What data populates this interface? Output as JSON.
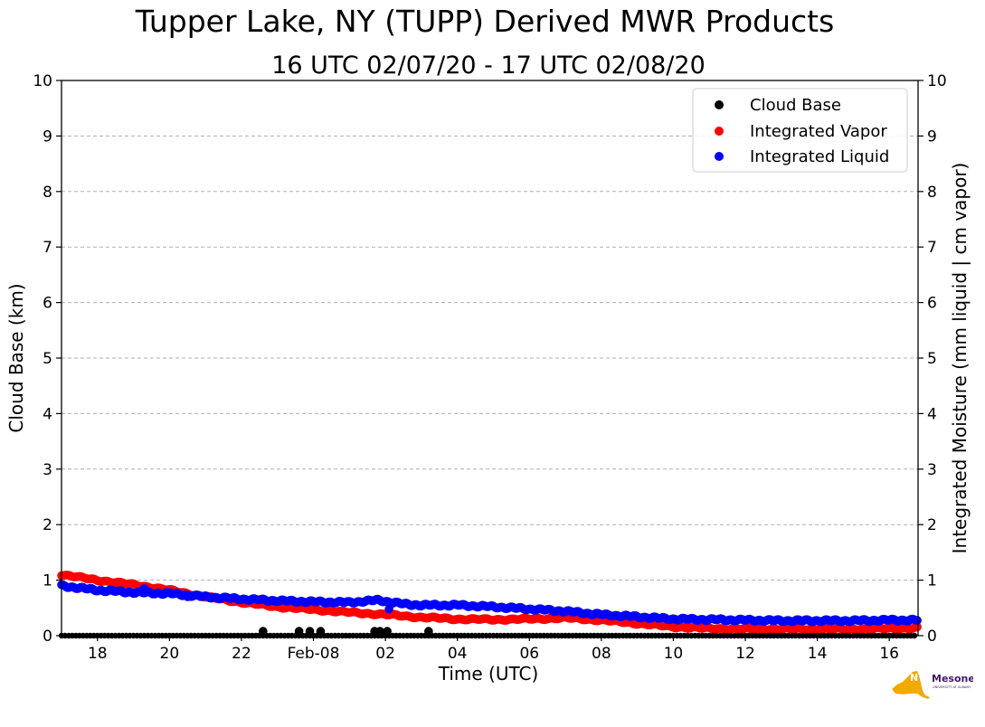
{
  "chart_data": {
    "type": "scatter",
    "title": "Tupper Lake, NY (TUPP) Derived MWR Products",
    "subtitle": "16 UTC 02/07/20 - 17 UTC 02/08/20",
    "xlabel": "Time (UTC)",
    "ylabel_left": "Cloud Base (km)",
    "ylabel_right": "Integrated Moisture (mm liquid | cm vapor)",
    "xlim": [
      17.0,
      40.8
    ],
    "ylim": [
      0,
      10
    ],
    "x_units": "hours UTC since 00 UTC 02/07/20",
    "x_ticks": [
      18,
      20,
      22,
      24,
      26,
      28,
      30,
      32,
      34,
      36,
      38,
      40
    ],
    "x_tick_labels": [
      "18",
      "20",
      "22",
      "Feb-08",
      "02",
      "04",
      "06",
      "08",
      "10",
      "12",
      "14",
      "16"
    ],
    "y_ticks": [
      0,
      1,
      2,
      3,
      4,
      5,
      6,
      7,
      8,
      9,
      10
    ],
    "y_tick_labels": [
      "0",
      "1",
      "2",
      "3",
      "4",
      "5",
      "6",
      "7",
      "8",
      "9",
      "10"
    ],
    "grid": "horizontal dashed",
    "legend_position": "top-right",
    "series": [
      {
        "name": "Cloud Base",
        "color": "#000000",
        "axis": "left",
        "baseline": {
          "y": 0.0,
          "from": 17.0,
          "to": 40.8
        },
        "points": [
          [
            22.6,
            0.08
          ],
          [
            23.6,
            0.08
          ],
          [
            23.9,
            0.08
          ],
          [
            24.2,
            0.08
          ],
          [
            25.7,
            0.08
          ],
          [
            25.85,
            0.08
          ],
          [
            26.05,
            0.08
          ],
          [
            27.2,
            0.08
          ]
        ]
      },
      {
        "name": "Integrated Vapor",
        "color": "#ff0000",
        "axis": "right",
        "points": [
          [
            17.0,
            1.1
          ],
          [
            18.0,
            1.0
          ],
          [
            19.0,
            0.92
          ],
          [
            20.0,
            0.82
          ],
          [
            21.0,
            0.7
          ],
          [
            22.0,
            0.6
          ],
          [
            23.0,
            0.52
          ],
          [
            24.0,
            0.47
          ],
          [
            25.0,
            0.42
          ],
          [
            26.0,
            0.38
          ],
          [
            27.0,
            0.33
          ],
          [
            28.0,
            0.3
          ],
          [
            29.0,
            0.29
          ],
          [
            30.0,
            0.3
          ],
          [
            31.0,
            0.32
          ],
          [
            32.0,
            0.28
          ],
          [
            33.0,
            0.22
          ],
          [
            34.0,
            0.16
          ],
          [
            35.0,
            0.13
          ],
          [
            36.0,
            0.12
          ],
          [
            37.0,
            0.12
          ],
          [
            38.0,
            0.12
          ],
          [
            39.0,
            0.12
          ],
          [
            40.0,
            0.13
          ],
          [
            40.8,
            0.14
          ]
        ]
      },
      {
        "name": "Integrated Liquid",
        "color": "#0000ff",
        "axis": "right",
        "points": [
          [
            17.0,
            0.9
          ],
          [
            18.0,
            0.82
          ],
          [
            19.0,
            0.78
          ],
          [
            20.0,
            0.76
          ],
          [
            21.0,
            0.7
          ],
          [
            22.0,
            0.66
          ],
          [
            23.0,
            0.63
          ],
          [
            24.0,
            0.61
          ],
          [
            25.0,
            0.6
          ],
          [
            25.8,
            0.64
          ],
          [
            26.5,
            0.57
          ],
          [
            27.0,
            0.55
          ],
          [
            28.0,
            0.55
          ],
          [
            29.0,
            0.52
          ],
          [
            30.0,
            0.48
          ],
          [
            31.0,
            0.44
          ],
          [
            32.0,
            0.38
          ],
          [
            33.0,
            0.34
          ],
          [
            34.0,
            0.3
          ],
          [
            35.0,
            0.29
          ],
          [
            36.0,
            0.28
          ],
          [
            37.0,
            0.27
          ],
          [
            38.0,
            0.27
          ],
          [
            39.0,
            0.27
          ],
          [
            40.0,
            0.28
          ],
          [
            40.8,
            0.28
          ]
        ],
        "outliers": [
          [
            19.3,
            0.85
          ],
          [
            20.5,
            0.7
          ],
          [
            26.1,
            0.48
          ]
        ]
      }
    ]
  },
  "logo": {
    "text": "NYS Mesonet",
    "subtext": "UNIVERSITY AT ALBANY",
    "colors": {
      "state": "#f2a900",
      "text": "#46166b"
    }
  }
}
